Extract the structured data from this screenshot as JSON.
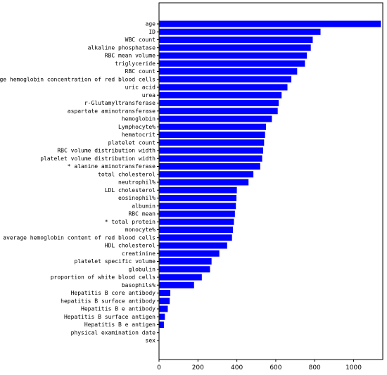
{
  "chart_data": {
    "type": "bar",
    "orientation": "horizontal",
    "bar_color": "#0000ff",
    "categories": [
      "age",
      "ID",
      "WBC count",
      "alkaline phosphatase",
      "RBC mean volume",
      "triglyceride",
      "RBC count",
      "average hemoglobin concentration of red blood cells",
      "uric acid",
      "urea",
      "r-Glutamyltransferase",
      "aspartate aminotransferase",
      "hemoglobin",
      "Lymphocyte%",
      "hematocrit",
      "platelet count",
      "RBC volume distribution width",
      "platelet volume distribution width",
      "* alanine aminotransferase",
      "total cholesterol",
      "neutrophil%",
      "LDL cholesterol",
      "eosinophil%",
      "albumin",
      "RBC mean",
      "* total protein",
      "monocyte%",
      "average hemoglobin content of red blood cells",
      "HDL cholesterol",
      "creatinine",
      "platelet specific volume",
      "globulin",
      "proportion of white blood cells",
      "basophils%",
      "Hepatitis B core antibody",
      "hepatitis B surface antibody",
      "Hepatitis B e antibody",
      "Hepatitis B surface antigen",
      "Hepatitis B e antigen",
      "physical examination date",
      "sex"
    ],
    "values": [
      1140,
      830,
      790,
      780,
      760,
      750,
      710,
      680,
      660,
      630,
      615,
      610,
      580,
      550,
      545,
      540,
      535,
      530,
      520,
      485,
      460,
      400,
      398,
      395,
      390,
      385,
      380,
      375,
      350,
      310,
      270,
      262,
      220,
      180,
      58,
      55,
      45,
      30,
      25,
      0,
      0
    ],
    "xlim": [
      0,
      1150
    ],
    "xticks": [
      "0",
      "200",
      "400",
      "600",
      "800",
      "1000"
    ],
    "title": "",
    "xlabel": "",
    "ylabel": ""
  }
}
